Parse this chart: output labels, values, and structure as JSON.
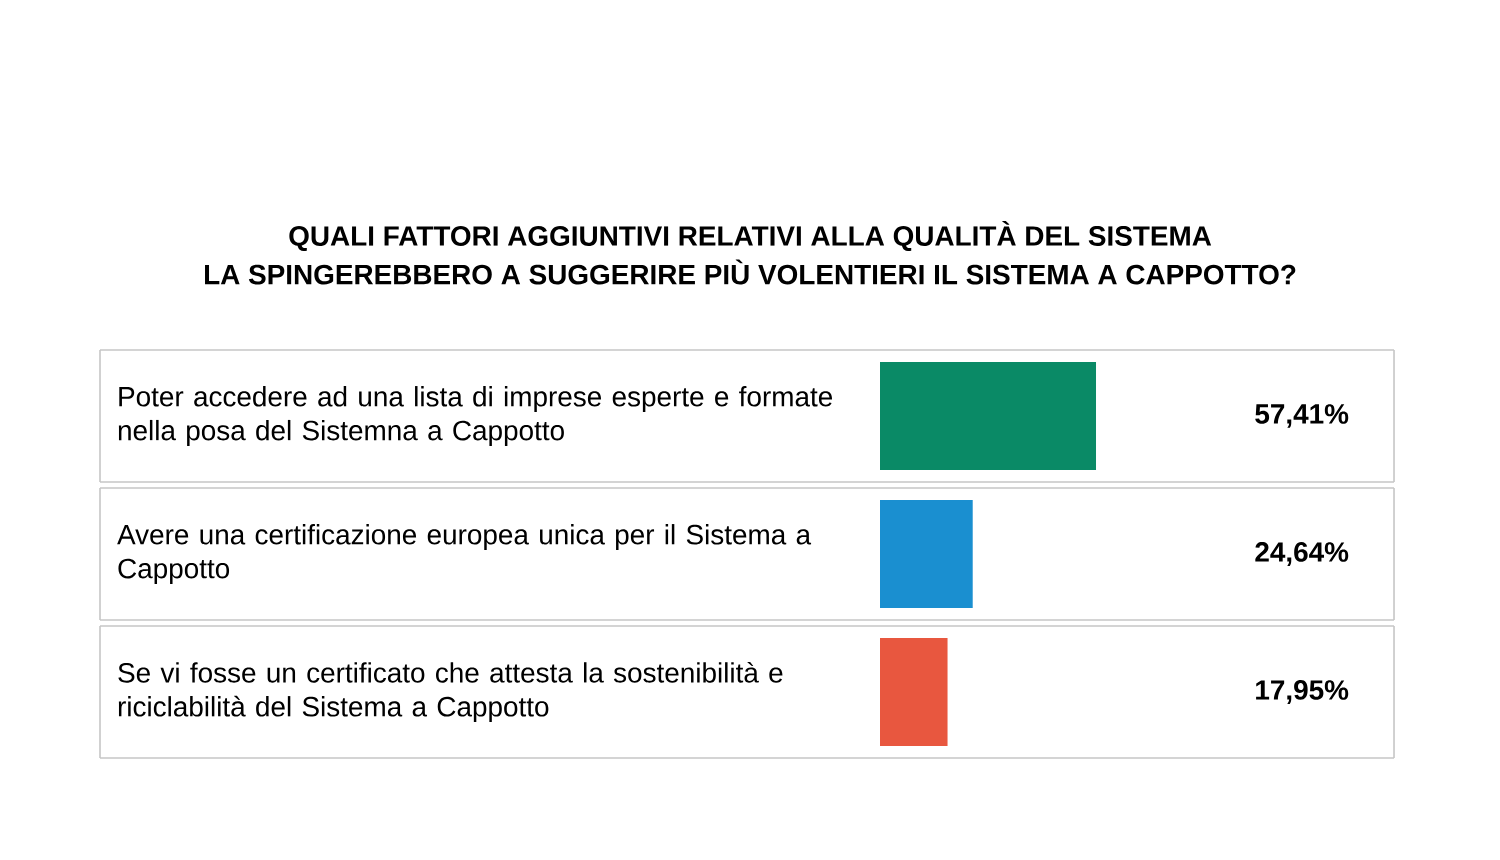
{
  "chart_data": {
    "type": "bar",
    "orientation": "horizontal",
    "title": "QUALI FATTORI AGGIUNTIVI RELATIVI ALLA QUALITÀ DEL SISTEMA",
    "subtitle": "LA SPINGEREBBERO A SUGGERIRE PIÙ VOLENTIERI IL SISTEMA A CAPPOTTO?",
    "categories": [
      "Poter accedere ad una lista di imprese esperte e formate nella posa del Sistemna a Cappotto",
      "Avere una certificazione europea unica per il Sistema a Cappotto",
      "Se vi fosse un certificato che attesta la sostenibilità e riciclabilità del Sistema a Cappotto"
    ],
    "values": [
      57.41,
      24.64,
      17.95
    ],
    "colors": [
      "#0a8a66",
      "#1a8fd0",
      "#e8573f"
    ],
    "value_labels": [
      "57,41%",
      "24,64%",
      "17,95%"
    ],
    "tick_labels": "y"
  }
}
